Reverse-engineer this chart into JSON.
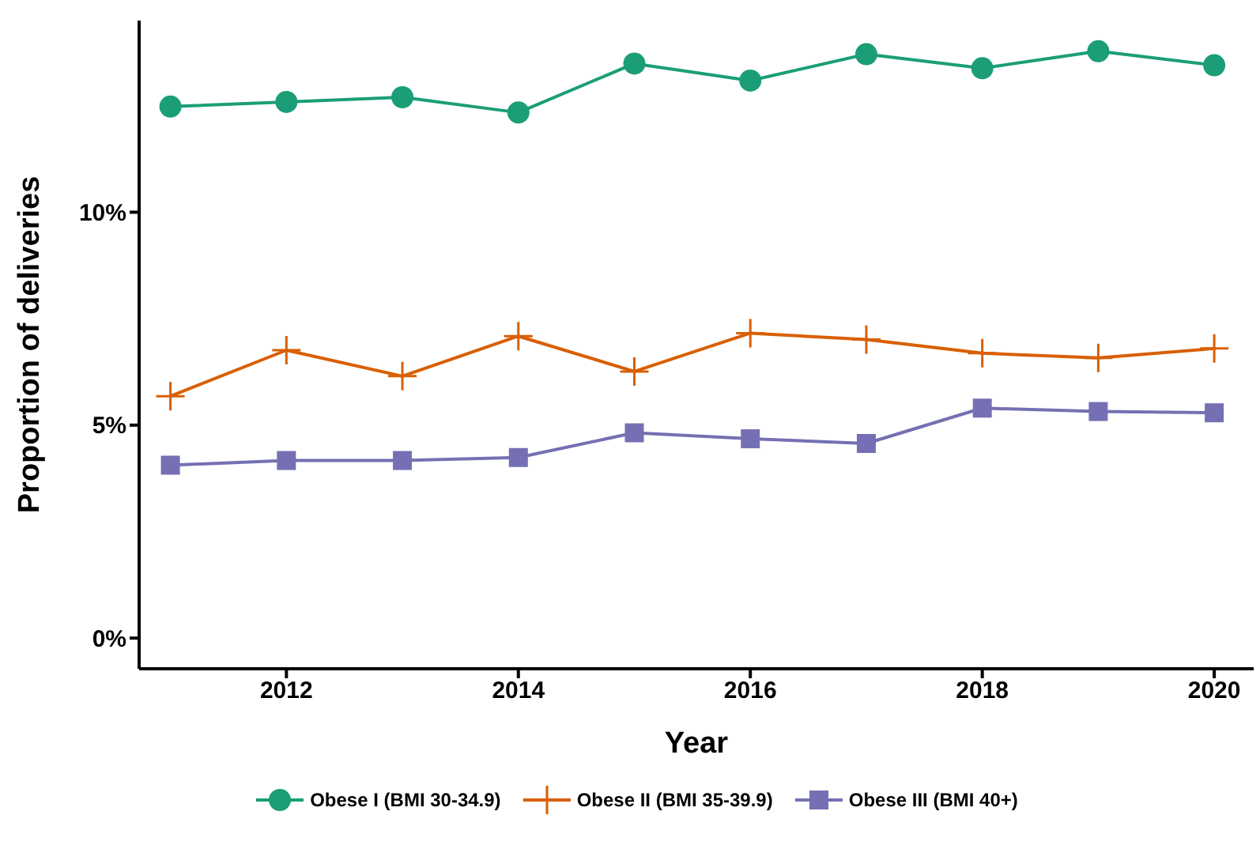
{
  "chart_data": {
    "type": "line",
    "xlabel": "Year",
    "ylabel": "Proportion of deliveries",
    "x": [
      2011,
      2012,
      2013,
      2014,
      2015,
      2016,
      2017,
      2018,
      2019,
      2020
    ],
    "series": [
      {
        "name": "Obese I (BMI 30-34.9)",
        "color": "#1b9e77",
        "marker": "circle",
        "values": [
          12.48,
          12.59,
          12.7,
          12.34,
          13.49,
          13.09,
          13.71,
          13.38,
          13.78,
          13.45
        ]
      },
      {
        "name": "Obese II (BMI 35-39.9)",
        "color": "#d95f02",
        "marker": "cross",
        "values": [
          5.68,
          6.76,
          6.15,
          7.09,
          6.26,
          7.16,
          7.01,
          6.69,
          6.58,
          6.8
        ]
      },
      {
        "name": "Obese III (BMI 40+)",
        "color": "#7570b3",
        "marker": "square",
        "values": [
          4.06,
          4.17,
          4.17,
          4.24,
          4.82,
          4.68,
          4.57,
          5.4,
          5.32,
          5.29
        ]
      }
    ],
    "xlim": [
      2010.73,
      2020.34
    ],
    "xticks": [
      2012,
      2014,
      2016,
      2018,
      2020
    ],
    "ylim": [
      -0.72,
      14.5
    ],
    "yticks": [
      {
        "value": 0,
        "label": "0%"
      },
      {
        "value": 5,
        "label": "5%"
      },
      {
        "value": 10,
        "label": "10%"
      }
    ],
    "grid": false,
    "legend": "bottom"
  }
}
